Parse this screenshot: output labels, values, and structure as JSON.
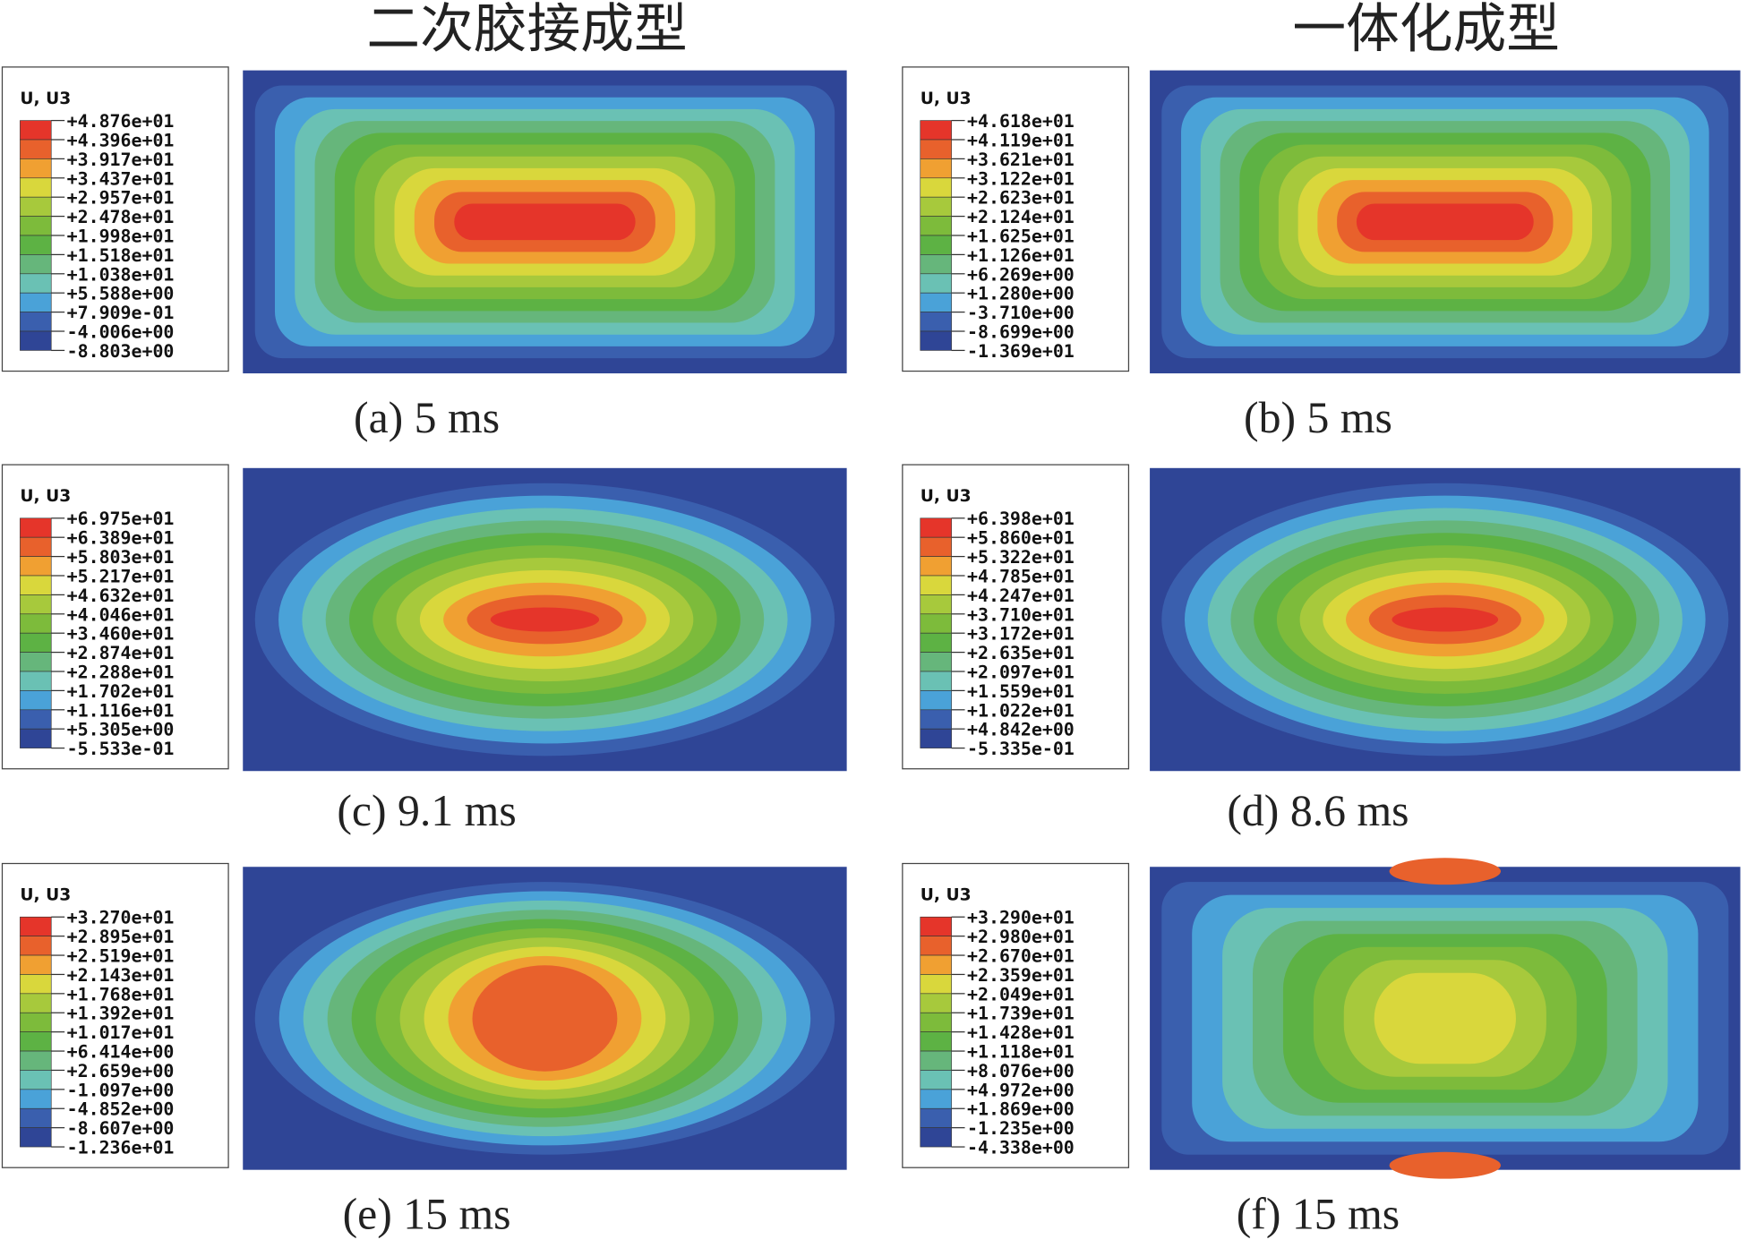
{
  "headers": [
    "二次胶接成型",
    "一体化成型"
  ],
  "panels": [
    {
      "legend_title": "U, U3",
      "legend_values": [
        "+4.876e+01",
        "+4.396e+01",
        "+3.917e+01",
        "+3.437e+01",
        "+2.957e+01",
        "+2.478e+01",
        "+1.998e+01",
        "+1.518e+01",
        "+1.038e+01",
        "+5.588e+00",
        "+7.909e-01",
        "-4.006e+00",
        "-8.803e+00"
      ],
      "caption": "(a) 5 ms"
    },
    {
      "legend_title": "U, U3",
      "legend_values": [
        "+4.618e+01",
        "+4.119e+01",
        "+3.621e+01",
        "+3.122e+01",
        "+2.623e+01",
        "+2.124e+01",
        "+1.625e+01",
        "+1.126e+01",
        "+6.269e+00",
        "+1.280e+00",
        "-3.710e+00",
        "-8.699e+00",
        "-1.369e+01"
      ],
      "caption": "(b) 5 ms"
    },
    {
      "legend_title": "U, U3",
      "legend_values": [
        "+6.975e+01",
        "+6.389e+01",
        "+5.803e+01",
        "+5.217e+01",
        "+4.632e+01",
        "+4.046e+01",
        "+3.460e+01",
        "+2.874e+01",
        "+2.288e+01",
        "+1.702e+01",
        "+1.116e+01",
        "+5.305e+00",
        "-5.533e-01"
      ],
      "caption": "(c) 9.1 ms"
    },
    {
      "legend_title": "U, U3",
      "legend_values": [
        "+6.398e+01",
        "+5.860e+01",
        "+5.322e+01",
        "+4.785e+01",
        "+4.247e+01",
        "+3.710e+01",
        "+3.172e+01",
        "+2.635e+01",
        "+2.097e+01",
        "+1.559e+01",
        "+1.022e+01",
        "+4.842e+00",
        "-5.335e-01"
      ],
      "caption": "(d) 8.6 ms"
    },
    {
      "legend_title": "U, U3",
      "legend_values": [
        "+3.270e+01",
        "+2.895e+01",
        "+2.519e+01",
        "+2.143e+01",
        "+1.768e+01",
        "+1.392e+01",
        "+1.017e+01",
        "+6.414e+00",
        "+2.659e+00",
        "-1.097e+00",
        "-4.852e+00",
        "-8.607e+00",
        "-1.236e+01"
      ],
      "caption": "(e) 15 ms"
    },
    {
      "legend_title": "U, U3",
      "legend_values": [
        "+3.290e+01",
        "+2.980e+01",
        "+2.670e+01",
        "+2.359e+01",
        "+2.049e+01",
        "+1.739e+01",
        "+1.428e+01",
        "+1.118e+01",
        "+8.076e+00",
        "+4.972e+00",
        "+1.869e+00",
        "-1.235e+00",
        "-4.338e+00"
      ],
      "caption": "(f) 15 ms"
    }
  ]
}
